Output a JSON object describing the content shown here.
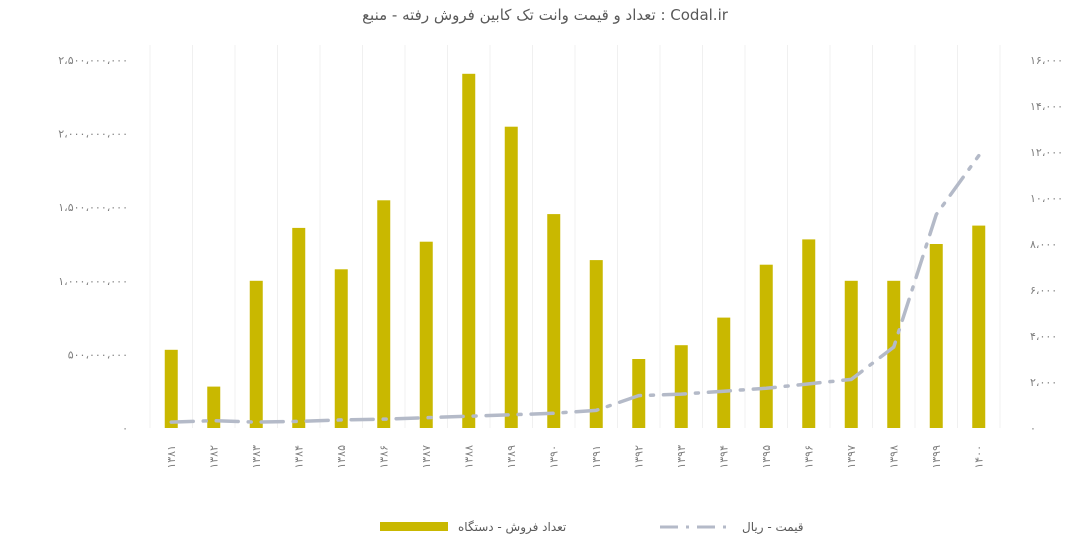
{
  "chart_data": {
    "type": "bar",
    "title": "تعداد و قیمت وانت تک کابین فروش رفته - منبع : Codal.ir",
    "categories": [
      "۱۳۸۱",
      "۱۳۸۲",
      "۱۳۸۳",
      "۱۳۸۴",
      "۱۳۸۵",
      "۱۳۸۶",
      "۱۳۸۷",
      "۱۳۸۸",
      "۱۳۸۹",
      "۱۳۹۰",
      "۱۳۹۱",
      "۱۳۹۲",
      "۱۳۹۳",
      "۱۳۹۴",
      "۱۳۹۵",
      "۱۳۹۶",
      "۱۳۹۷",
      "۱۳۹۸",
      "۱۳۹۹",
      "۱۴۰۰"
    ],
    "series": [
      {
        "name": "تعداد فروش - دستگاه",
        "kind": "bar",
        "axis": "right",
        "color": "#c9b800",
        "values": [
          3400,
          1800,
          6400,
          8700,
          6900,
          9900,
          8100,
          15400,
          13100,
          9300,
          7300,
          3000,
          3600,
          4800,
          7100,
          8200,
          6400,
          6400,
          8000,
          8800
        ]
      },
      {
        "name": "قیمت - ریال",
        "kind": "line",
        "axis": "left",
        "color": "#b4bac8",
        "dash": "dash-dot",
        "values": [
          40000000,
          50000000,
          40000000,
          45000000,
          55000000,
          60000000,
          70000000,
          80000000,
          90000000,
          100000000,
          120000000,
          220000000,
          230000000,
          250000000,
          270000000,
          300000000,
          330000000,
          550000000,
          1450000000,
          1850000000
        ]
      }
    ],
    "y_left": {
      "min": 0,
      "max": 2500000000,
      "ticks": [
        "۰",
        "۵۰۰،۰۰۰،۰۰۰",
        "۱،۰۰۰،۰۰۰،۰۰۰",
        "۱،۵۰۰،۰۰۰،۰۰۰",
        "۲،۰۰۰،۰۰۰،۰۰۰",
        "۲،۵۰۰،۰۰۰،۰۰۰"
      ]
    },
    "y_right": {
      "min": 0,
      "max": 16000,
      "ticks": [
        "۰",
        "۲،۰۰۰",
        "۴،۰۰۰",
        "۶،۰۰۰",
        "۸،۰۰۰",
        "۱۰،۰۰۰",
        "۱۲،۰۰۰",
        "۱۴،۰۰۰",
        "۱۶،۰۰۰"
      ]
    },
    "grid": "vertical",
    "legend_position": "bottom"
  }
}
